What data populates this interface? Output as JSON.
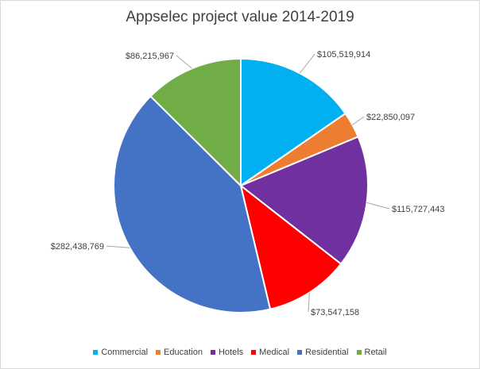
{
  "chart_data": {
    "type": "pie",
    "title": "Appselec project value 2014-2019",
    "categories": [
      "Commercial",
      "Education",
      "Hotels",
      "Medical",
      "Residential",
      "Retail"
    ],
    "values": [
      105519914,
      22850097,
      115727443,
      73547158,
      282438769,
      86215967
    ],
    "data_labels": [
      "$105,519,914",
      "$22,850,097",
      "$115,727,443",
      "$73,547,158",
      "$282,438,769",
      "$86,215,967"
    ],
    "colors": [
      "#00b0f0",
      "#ed7d31",
      "#7030a0",
      "#ff0000",
      "#4472c4",
      "#70ad47"
    ],
    "legend_position": "bottom"
  }
}
